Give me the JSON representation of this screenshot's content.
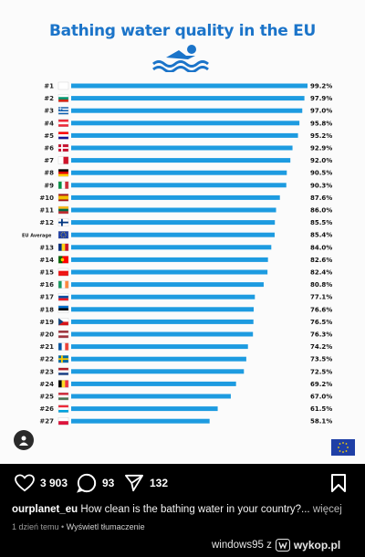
{
  "post": {
    "chart_title": "Bathing water quality in the EU"
  },
  "chart_data": {
    "type": "bar",
    "title": "Bathing water quality in the EU",
    "xlabel": "",
    "ylabel": "",
    "xlim": [
      0,
      100
    ],
    "categories": [
      "#1",
      "#2",
      "#3",
      "#4",
      "#5",
      "#6",
      "#7",
      "#8",
      "#9",
      "#10",
      "#11",
      "#12",
      "EU Average",
      "#13",
      "#14",
      "#15",
      "#16",
      "#17",
      "#18",
      "#19",
      "#20",
      "#21",
      "#22",
      "#23",
      "#24",
      "#25",
      "#26",
      "#27"
    ],
    "values": [
      99.2,
      97.9,
      97.0,
      95.8,
      95.2,
      92.9,
      92.0,
      90.5,
      90.3,
      87.6,
      86.0,
      85.5,
      85.4,
      84.0,
      82.6,
      82.4,
      80.8,
      77.1,
      76.6,
      76.5,
      76.3,
      74.2,
      73.5,
      72.5,
      69.2,
      67.0,
      61.5,
      58.1
    ],
    "value_labels": [
      "99.2%",
      "97.9%",
      "97.0%",
      "95.8%",
      "95.2%",
      "92.9%",
      "92.0%",
      "90.5%",
      "90.3%",
      "87.6%",
      "86.0%",
      "85.5%",
      "85.4%",
      "84.0%",
      "82.6%",
      "82.4%",
      "80.8%",
      "77.1%",
      "76.6%",
      "76.5%",
      "76.3%",
      "74.2%",
      "73.5%",
      "72.5%",
      "69.2%",
      "67.0%",
      "61.5%",
      "58.1%"
    ],
    "flags": [
      "cyprus",
      "bulgaria",
      "greece",
      "austria",
      "croatia",
      "denmark",
      "malta",
      "germany",
      "italy",
      "spain",
      "lithuania",
      "finland",
      "eu",
      "romania",
      "portugal",
      "slovenia-red",
      "ireland",
      "slovakia",
      "estonia",
      "czechia",
      "latvia",
      "france",
      "sweden",
      "netherlands",
      "belgium",
      "hungary",
      "luxembourg",
      "poland"
    ],
    "bar_color": "#1d9be0"
  },
  "actions": {
    "likes": "3 903",
    "comments": "93",
    "shares": "132"
  },
  "caption": {
    "username": "ourplanet_eu",
    "text": " How clean is the bathing water in your country?...",
    "more": " więcej"
  },
  "meta": {
    "time": "1 dzień temu",
    "separator": " • ",
    "translate": "Wyświetl tłumaczenie"
  },
  "watermark": {
    "text": "windows95  z",
    "site": "wykop.pl"
  }
}
